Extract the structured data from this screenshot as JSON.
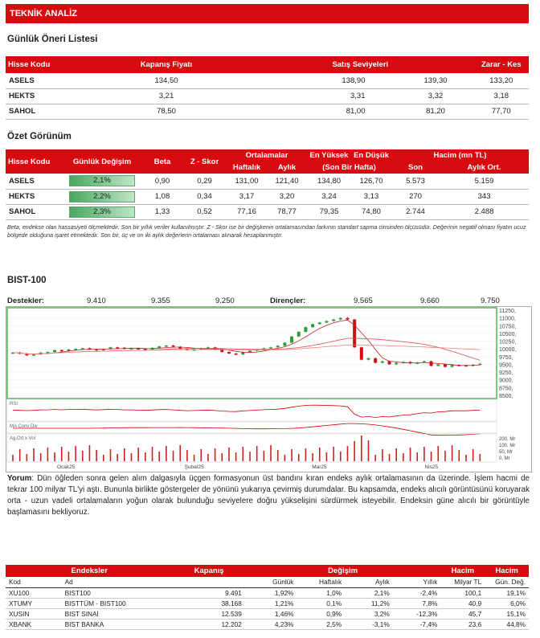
{
  "header": {
    "title": "TEKNİK ANALİZ"
  },
  "oneri": {
    "title": "Günlük Öneri Listesi",
    "headers": [
      "Hisse Kodu",
      "Kapanış Fiyatı",
      "Satış Seviyeleri",
      "Zarar  - Kes"
    ],
    "rows": [
      {
        "code": "ASELS",
        "kapanis": "134,50",
        "s1": "138,90",
        "s2": "139,30",
        "zarar": "133,20"
      },
      {
        "code": "HEKTS",
        "kapanis": "3,21",
        "s1": "3,31",
        "s2": "3,32",
        "zarar": "3,18"
      },
      {
        "code": "SAHOL",
        "kapanis": "78,50",
        "s1": "81,00",
        "s2": "81,20",
        "zarar": "77,70"
      }
    ]
  },
  "ozet": {
    "title": "Özet Görünüm",
    "headers": {
      "kod": "Hisse Kodu",
      "degisim": "Günlük Değişim",
      "beta": "Beta",
      "zskor": "Z - Skor",
      "ort": "Ortalamalar",
      "haftalik": "Haftalık",
      "aylik": "Aylık",
      "enyuksek": "En Yüksek",
      "endusuk": "En Düşük",
      "sonbir": "(Son Bir Hafta)",
      "hacim": "Hacim (mn TL)",
      "son": "Son",
      "aylikort": "Aylık Ort."
    },
    "rows": [
      {
        "code": "ASELS",
        "degisim": "2,1%",
        "degisim_pct": 2.1,
        "beta": "0,90",
        "z": "0,29",
        "haftalik": "131,00",
        "aylik": "121,40",
        "yuksek": "134,80",
        "dusuk": "126,70",
        "son": "5.573",
        "aylikort": "5.159"
      },
      {
        "code": "HEKTS",
        "degisim": "2,2%",
        "degisim_pct": 2.2,
        "beta": "1,08",
        "z": "0,34",
        "haftalik": "3,17",
        "aylik": "3,20",
        "yuksek": "3,24",
        "dusuk": "3,13",
        "son": "270",
        "aylikort": "343"
      },
      {
        "code": "SAHOL",
        "degisim": "2,3%",
        "degisim_pct": 2.3,
        "beta": "1,33",
        "z": "0,52",
        "haftalik": "77,16",
        "aylik": "78,77",
        "yuksek": "79,35",
        "dusuk": "74,80",
        "son": "2.744",
        "aylikort": "2.488"
      }
    ],
    "note": "Beta, endekse olan hassasiyeti ölçmektedir. Son bir yıllık veriler kullanılmıştır. Z - Skor ise bir değişkenin ortalamasından farkının standart sapma cinsinden ölçüsüdür. Değerinin negatif olması fiyatın ucuz bölgede olduğuna işaret etmektedir. Son bir, üç ve on iki aylık değerlerin ortalaması alınarak hesaplanmıştır."
  },
  "bist": {
    "title": "BIST-100",
    "destek_label": "Destekler:",
    "destekler": [
      "9.410",
      "9.355",
      "9.250"
    ],
    "direnc_label": "Dirençler:",
    "direncler": [
      "9.565",
      "9.660",
      "9.750"
    ]
  },
  "chart_data": {
    "type": "line",
    "title": "",
    "x_ticks": [
      "Ocak25",
      "Şubat25",
      "Mar25",
      "Nis25"
    ],
    "y_ticks": [
      "11250,",
      "11000,",
      "10750,",
      "10500,",
      "10250,",
      "10000,",
      "9750,",
      "9500,",
      "9250,",
      "9000,",
      "8750,",
      "8500,"
    ],
    "panels": [
      "RSI",
      "MA Conv Div",
      "Ag.Ort x Vol"
    ],
    "vol_ticks": [
      "200, Mr",
      "100, Mr",
      "50, Mr",
      "0, Mr"
    ],
    "candles_close": [
      9880,
      9850,
      9790,
      9820,
      9880,
      9900,
      9960,
      9930,
      9980,
      10000,
      10020,
      9990,
      9960,
      9990,
      10050,
      10040,
      10010,
      10020,
      10000,
      9980,
      10030,
      10080,
      10110,
      10070,
      10000,
      9960,
      9980,
      10020,
      10050,
      9980,
      9900,
      9850,
      9820,
      9900,
      9940,
      9980,
      10020,
      10050,
      10100,
      10200,
      10400,
      10550,
      10700,
      10800,
      10850,
      10900,
      10950,
      11000,
      10950,
      10050,
      9650,
      9700,
      9550,
      9600,
      9500,
      9550,
      9580,
      9530,
      9560,
      9600,
      9450,
      9500,
      9420,
      9480,
      9470,
      9450,
      9490,
      9520
    ]
  },
  "yorum": {
    "label": "Yorum",
    "text": ": Dün öğleden sonra gelen alım dalgasıyla üçgen formasyonun üst bandını kıran endeks aylık ortalamasının da üzerinde. İşlem hacmi de tekrar 100 milyar TL'yi aştı. Bununla birlikte göstergeler de yönünü yukarıya çevirmiş durumdalar. Bu kapsamda, endeks alıcılı görüntüsünü koruyarak orta - uzun vadeli ortalamaların yoğun olarak bulunduğu seviyelere doğru yükselişini sürdürmek isteyebilir. Endeksin güne alıcılı bir görüntüyle başlamasını bekliyoruz."
  },
  "endeksler": {
    "headers": {
      "endeksler": "Endeksler",
      "kapanis": "Kapanış",
      "degisim": "Değişim",
      "hacim1": "Hacim",
      "hacim2": "Hacim"
    },
    "sub": {
      "kod": "Kod",
      "ad": "Ad",
      "gunluk": "Günlük",
      "haftalik": "Haftalık",
      "aylik": "Aylık",
      "yillik": "Yıllık",
      "milyar": "Milyar TL",
      "gundeg": "Gün. Değ."
    },
    "rows": [
      {
        "kod": "XU100",
        "ad": "BIST100",
        "kapanis": "9.491",
        "gunluk": "1,92%",
        "haftalik": "1,0%",
        "aylik": "2,1%",
        "yillik": "-2,4%",
        "milyar": "100,1",
        "gundeg": "19,1%"
      },
      {
        "kod": "XTUMY",
        "ad": "BISTTÜM - BIST100",
        "kapanis": "38.168",
        "gunluk": "1,21%",
        "haftalik": "0,1%",
        "aylik": "11,2%",
        "yillik": "7,8%",
        "milyar": "40,9",
        "gundeg": "6,0%"
      },
      {
        "kod": "XUSIN",
        "ad": "BIST SINAİ",
        "kapanis": "12.539",
        "gunluk": "1,46%",
        "haftalik": "0,9%",
        "aylik": "3,2%",
        "yillik": "-12,3%",
        "milyar": "45,7",
        "gundeg": "15,1%"
      },
      {
        "kod": "XBANK",
        "ad": "BIST BANKA",
        "kapanis": "12.202",
        "gunluk": "4,23%",
        "haftalik": "2,5%",
        "aylik": "-3,1%",
        "yillik": "-7,4%",
        "milyar": "23,6",
        "gundeg": "44,8%"
      }
    ]
  },
  "colors": {
    "accent": "#d70a0f",
    "up": "#2a9d3a",
    "down": "#d01010"
  }
}
